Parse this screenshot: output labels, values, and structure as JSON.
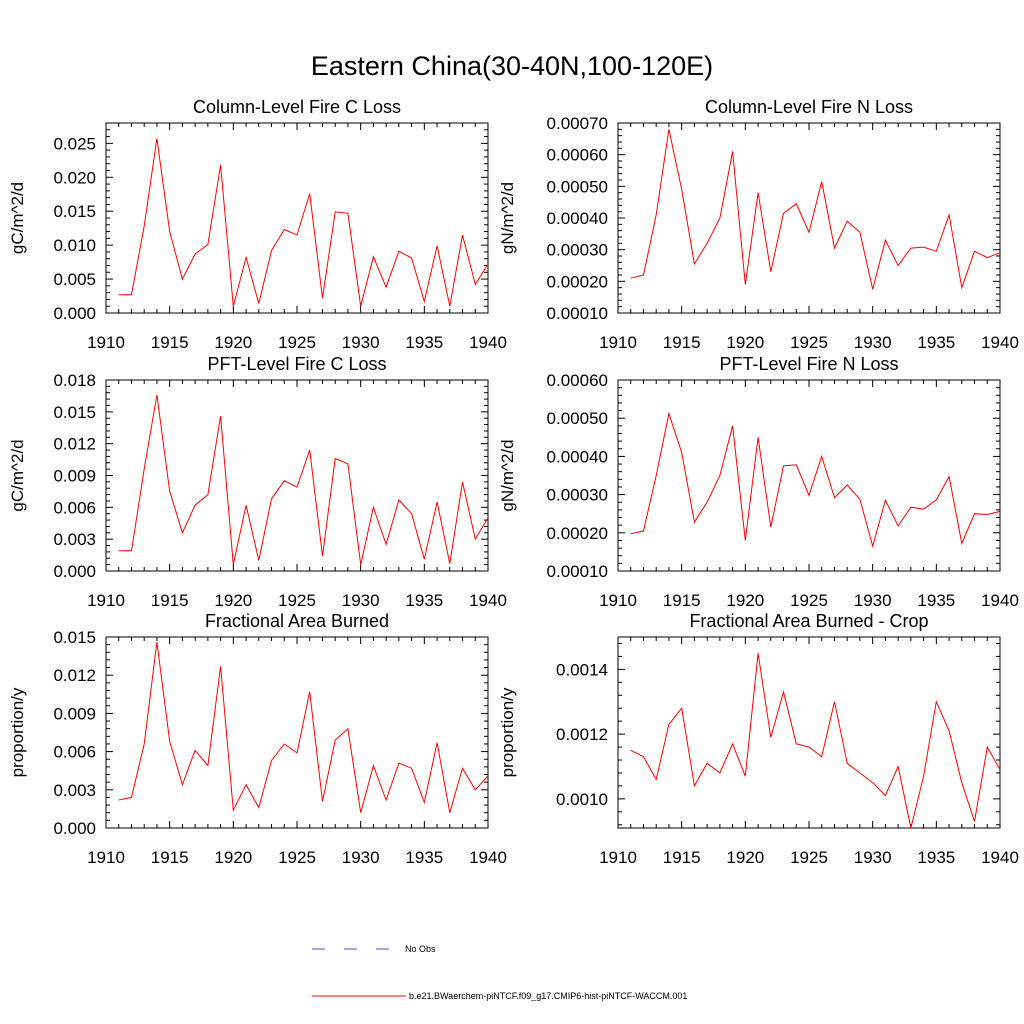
{
  "figure_title": "Eastern China(30-40N,100-120E)",
  "colors": {
    "series": "#ff0000",
    "no_obs": "#4a4ad0",
    "axis": "#000000"
  },
  "legend": {
    "items": [
      {
        "label": "No Obs",
        "color": "#4a4ad0",
        "style": "dashed"
      },
      {
        "label": "b.e21.BWaerchem-piNTCF.f09_g17.CMIP6-hist-piNTCF-WACCM.001",
        "color": "#ff0000",
        "style": "solid"
      }
    ]
  },
  "chart_data": [
    {
      "type": "line",
      "title": "Column-Level Fire C Loss",
      "xlabel": "",
      "ylabel": "gC/m^2/d",
      "xlim": [
        1910,
        1940
      ],
      "ylim": [
        0,
        0.028
      ],
      "xticks": [
        1910,
        1915,
        1920,
        1925,
        1930,
        1935,
        1940
      ],
      "yticks": [
        "0.000",
        "0.005",
        "0.010",
        "0.015",
        "0.020",
        "0.025"
      ],
      "x": [
        1911,
        1912,
        1913,
        1914,
        1915,
        1916,
        1917,
        1918,
        1919,
        1920,
        1921,
        1922,
        1923,
        1924,
        1925,
        1926,
        1927,
        1928,
        1929,
        1930,
        1931,
        1932,
        1933,
        1934,
        1935,
        1936,
        1937,
        1938,
        1939,
        1940
      ],
      "series": [
        {
          "name": "b.e21.BWaerchem-piNTCF.f09_g17.CMIP6-hist-piNTCF-WACCM.001",
          "values": [
            0.0027,
            0.0027,
            0.0128,
            0.0257,
            0.012,
            0.005,
            0.0087,
            0.0101,
            0.0218,
            0.001,
            0.0082,
            0.0014,
            0.0092,
            0.0123,
            0.0115,
            0.0176,
            0.0022,
            0.0149,
            0.0147,
            0.001,
            0.0083,
            0.0038,
            0.0091,
            0.0081,
            0.0017,
            0.0099,
            0.001,
            0.0115,
            0.0042,
            0.0072
          ]
        }
      ]
    },
    {
      "type": "line",
      "title": "Column-Level Fire N Loss",
      "xlabel": "",
      "ylabel": "gN/m^2/d",
      "xlim": [
        1910,
        1940
      ],
      "ylim": [
        0.0001,
        0.0007
      ],
      "xticks": [
        1910,
        1915,
        1920,
        1925,
        1930,
        1935,
        1940
      ],
      "yticks": [
        "0.00010",
        "0.00020",
        "0.00030",
        "0.00040",
        "0.00050",
        "0.00060",
        "0.00070"
      ],
      "x": [
        1911,
        1912,
        1913,
        1914,
        1915,
        1916,
        1917,
        1918,
        1919,
        1920,
        1921,
        1922,
        1923,
        1924,
        1925,
        1926,
        1927,
        1928,
        1929,
        1930,
        1931,
        1932,
        1933,
        1934,
        1935,
        1936,
        1937,
        1938,
        1939,
        1940
      ],
      "series": [
        {
          "name": "b.e21.BWaerchem-piNTCF.f09_g17.CMIP6-hist-piNTCF-WACCM.001",
          "values": [
            0.00021,
            0.00022,
            0.00041,
            0.00068,
            0.00049,
            0.000255,
            0.00032,
            0.0004,
            0.00061,
            0.00019,
            0.00048,
            0.00023,
            0.000415,
            0.000445,
            0.000355,
            0.000515,
            0.000305,
            0.00039,
            0.000355,
            0.000175,
            0.00033,
            0.00025,
            0.000305,
            0.000308,
            0.000295,
            0.00041,
            0.00018,
            0.000295,
            0.000275,
            0.00029
          ]
        }
      ]
    },
    {
      "type": "line",
      "title": "PFT-Level Fire C Loss",
      "xlabel": "",
      "ylabel": "gC/m^2/d",
      "xlim": [
        1910,
        1940
      ],
      "ylim": [
        0,
        0.018
      ],
      "xticks": [
        1910,
        1915,
        1920,
        1925,
        1930,
        1935,
        1940
      ],
      "yticks": [
        "0.000",
        "0.003",
        "0.006",
        "0.009",
        "0.012",
        "0.015",
        "0.018"
      ],
      "x": [
        1911,
        1912,
        1913,
        1914,
        1915,
        1916,
        1917,
        1918,
        1919,
        1920,
        1921,
        1922,
        1923,
        1924,
        1925,
        1926,
        1927,
        1928,
        1929,
        1930,
        1931,
        1932,
        1933,
        1934,
        1935,
        1936,
        1937,
        1938,
        1939,
        1940
      ],
      "series": [
        {
          "name": "b.e21.BWaerchem-piNTCF.f09_g17.CMIP6-hist-piNTCF-WACCM.001",
          "values": [
            0.0019,
            0.0019,
            0.0096,
            0.0166,
            0.0075,
            0.0036,
            0.0062,
            0.0072,
            0.0146,
            0.0006,
            0.0062,
            0.001,
            0.0068,
            0.0085,
            0.0079,
            0.0114,
            0.0014,
            0.0106,
            0.0101,
            0.0006,
            0.006,
            0.0025,
            0.0067,
            0.0054,
            0.0011,
            0.0065,
            0.0007,
            0.0084,
            0.003,
            0.005
          ]
        }
      ]
    },
    {
      "type": "line",
      "title": "PFT-Level Fire N Loss",
      "xlabel": "",
      "ylabel": "gN/m^2/d",
      "xlim": [
        1910,
        1940
      ],
      "ylim": [
        0.0001,
        0.0006
      ],
      "xticks": [
        1910,
        1915,
        1920,
        1925,
        1930,
        1935,
        1940
      ],
      "yticks": [
        "0.00010",
        "0.00020",
        "0.00030",
        "0.00040",
        "0.00050",
        "0.00060"
      ],
      "x": [
        1911,
        1912,
        1913,
        1914,
        1915,
        1916,
        1917,
        1918,
        1919,
        1920,
        1921,
        1922,
        1923,
        1924,
        1925,
        1926,
        1927,
        1928,
        1929,
        1930,
        1931,
        1932,
        1933,
        1934,
        1935,
        1936,
        1937,
        1938,
        1939,
        1940
      ],
      "series": [
        {
          "name": "b.e21.BWaerchem-piNTCF.f09_g17.CMIP6-hist-piNTCF-WACCM.001",
          "values": [
            0.000197,
            0.000205,
            0.00035,
            0.000512,
            0.00041,
            0.000228,
            0.00028,
            0.00035,
            0.00048,
            0.00018,
            0.00045,
            0.000215,
            0.000375,
            0.000378,
            0.000298,
            0.0004,
            0.000292,
            0.000325,
            0.000288,
            0.000165,
            0.000285,
            0.000218,
            0.000267,
            0.000262,
            0.000286,
            0.000347,
            0.000172,
            0.00025,
            0.000248,
            0.000256
          ]
        }
      ]
    },
    {
      "type": "line",
      "title": "Fractional Area Burned",
      "xlabel": "",
      "ylabel": "proportion/y",
      "xlim": [
        1910,
        1940
      ],
      "ylim": [
        0,
        0.015
      ],
      "xticks": [
        1910,
        1915,
        1920,
        1925,
        1930,
        1935,
        1940
      ],
      "yticks": [
        "0.000",
        "0.003",
        "0.006",
        "0.009",
        "0.012",
        "0.015"
      ],
      "x": [
        1911,
        1912,
        1913,
        1914,
        1915,
        1916,
        1917,
        1918,
        1919,
        1920,
        1921,
        1922,
        1923,
        1924,
        1925,
        1926,
        1927,
        1928,
        1929,
        1930,
        1931,
        1932,
        1933,
        1934,
        1935,
        1936,
        1937,
        1938,
        1939,
        1940
      ],
      "series": [
        {
          "name": "b.e21.BWaerchem-piNTCF.f09_g17.CMIP6-hist-piNTCF-WACCM.001",
          "values": [
            0.0022,
            0.0024,
            0.0066,
            0.0146,
            0.0068,
            0.0034,
            0.0061,
            0.0049,
            0.0127,
            0.0014,
            0.0034,
            0.0016,
            0.0053,
            0.0066,
            0.0059,
            0.0107,
            0.0021,
            0.0069,
            0.0078,
            0.0012,
            0.0049,
            0.0022,
            0.0051,
            0.0047,
            0.002,
            0.0067,
            0.0012,
            0.0047,
            0.003,
            0.0041
          ]
        }
      ]
    },
    {
      "type": "line",
      "title": "Fractional Area Burned - Crop",
      "xlabel": "",
      "ylabel": "proportion/y",
      "xlim": [
        1910,
        1940
      ],
      "ylim": [
        0.00091,
        0.0015
      ],
      "xticks": [
        1910,
        1915,
        1920,
        1925,
        1930,
        1935,
        1940
      ],
      "yticks": [
        "0.0010",
        "0.0012",
        "0.0014"
      ],
      "ytick_values": [
        0.001,
        0.0012,
        0.0014
      ],
      "x": [
        1911,
        1912,
        1913,
        1914,
        1915,
        1916,
        1917,
        1918,
        1919,
        1920,
        1921,
        1922,
        1923,
        1924,
        1925,
        1926,
        1927,
        1928,
        1929,
        1930,
        1931,
        1932,
        1933,
        1934,
        1935,
        1936,
        1937,
        1938,
        1939,
        1940
      ],
      "series": [
        {
          "name": "b.e21.BWaerchem-piNTCF.f09_g17.CMIP6-hist-piNTCF-WACCM.001",
          "values": [
            0.00115,
            0.00113,
            0.00106,
            0.00123,
            0.00128,
            0.00104,
            0.00111,
            0.00108,
            0.00117,
            0.00107,
            0.00145,
            0.00119,
            0.00133,
            0.00117,
            0.00116,
            0.00113,
            0.0013,
            0.00111,
            0.00108,
            0.00105,
            0.00101,
            0.0011,
            0.00091,
            0.00107,
            0.0013,
            0.00121,
            0.00105,
            0.00093,
            0.00116,
            0.00109
          ]
        }
      ]
    }
  ]
}
